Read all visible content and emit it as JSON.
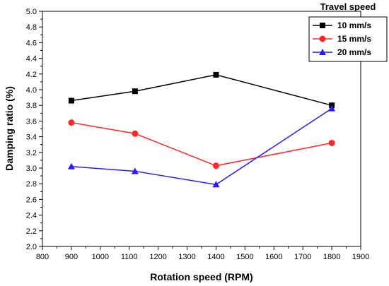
{
  "chart_data": {
    "type": "line",
    "xlabel": "Rotation speed (RPM)",
    "ylabel": "Damping ratio (%)",
    "xlim": [
      800,
      1900
    ],
    "ylim": [
      2.0,
      5.0
    ],
    "xticks": [
      800,
      900,
      1000,
      1100,
      1200,
      1300,
      1400,
      1500,
      1600,
      1700,
      1800,
      1900
    ],
    "yticks": [
      "2.0",
      "2.2",
      "2.4",
      "2.6",
      "2.8",
      "3.0",
      "3.2",
      "3.4",
      "3.6",
      "3.8",
      "4.0",
      "4.2",
      "4.4",
      "4.6",
      "4.8",
      "5.0"
    ],
    "legend_title": "Travel speed",
    "legend_position": "top-right",
    "series": [
      {
        "name": "10 mm/s",
        "color": "#000000",
        "marker": "square",
        "x": [
          900,
          1120,
          1400,
          1800
        ],
        "y": [
          3.86,
          3.98,
          4.19,
          3.8
        ]
      },
      {
        "name": "15 mm/s",
        "color": "#ff2a2a",
        "marker": "circle",
        "x": [
          900,
          1120,
          1400,
          1800
        ],
        "y": [
          3.58,
          3.44,
          3.03,
          3.32
        ]
      },
      {
        "name": "20 mm/s",
        "color": "#2a1aff",
        "marker": "triangle",
        "x": [
          900,
          1120,
          1400,
          1800
        ],
        "y": [
          3.02,
          2.96,
          2.79,
          3.76
        ]
      }
    ]
  }
}
